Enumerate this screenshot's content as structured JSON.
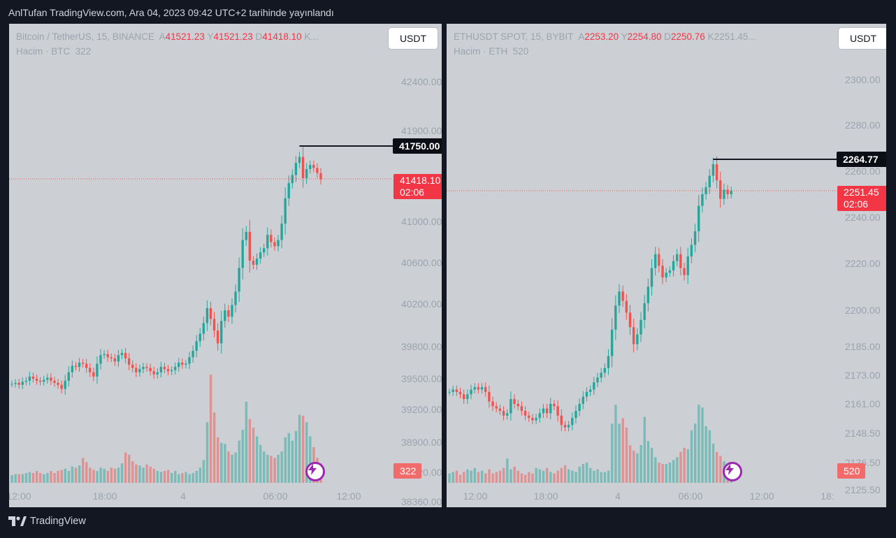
{
  "publication": "AnlTufan TradingView.com, Ara 04, 2023 09:42 UTC+2 tarihinde yayınlandı",
  "brand": "TradingView",
  "icons": {
    "brand": "tradingview-logo-icon",
    "alert": "lightning-bolt-icon"
  },
  "colors": {
    "up": "#26a69a",
    "down": "#ef5350",
    "pane_bg": "#ccd0d5",
    "frame_bg": "#131722"
  },
  "chart_data": [
    {
      "type": "candlestick",
      "symbol": "Bitcoin / TetherUS, 15, BINANCE",
      "ohlc_labels": {
        "a": "A",
        "a_val": "41521.23",
        "y": "Y",
        "y_val": "41521.23",
        "d": "D",
        "d_val": "41418.10",
        "k": "K..."
      },
      "volume_label": "Hacim · BTC",
      "volume_value": "322",
      "currency_button": "USDT",
      "ylim": [
        38360,
        42570
      ],
      "y_ticks": [
        "42400.00",
        "41900.00",
        "41000.00",
        "40600.00",
        "40200.00",
        "39800.00",
        "39500.00",
        "39200.00",
        "38900.00",
        "38620.00",
        "38360.00"
      ],
      "x_ticks": [
        "12:00",
        "18:00",
        "4",
        "06:00",
        "12:00"
      ],
      "high_marker": "41750.00",
      "last_price": "41418.10",
      "countdown": "02:06",
      "closes": [
        39450,
        39460,
        39440,
        39470,
        39480,
        39520,
        39500,
        39480,
        39470,
        39490,
        39510,
        39480,
        39460,
        39440,
        39400,
        39480,
        39560,
        39620,
        39610,
        39650,
        39640,
        39600,
        39560,
        39520,
        39640,
        39720,
        39730,
        39700,
        39690,
        39660,
        39720,
        39740,
        39690,
        39630,
        39600,
        39560,
        39590,
        39610,
        39600,
        39570,
        39540,
        39560,
        39610,
        39590,
        39570,
        39580,
        39610,
        39650,
        39630,
        39640,
        39700,
        39760,
        39850,
        39920,
        40020,
        40160,
        40060,
        39950,
        39830,
        40040,
        40140,
        40080,
        40190,
        40320,
        40550,
        40820,
        40900,
        40620,
        40580,
        40640,
        40700,
        40740,
        40870,
        40800,
        40760,
        40820,
        40980,
        41230,
        41380,
        41460,
        41580,
        41640,
        41430,
        41520,
        41560,
        41530,
        41480,
        41418.1
      ],
      "volumes": [
        14,
        16,
        16,
        16,
        18,
        20,
        18,
        22,
        18,
        16,
        18,
        22,
        18,
        22,
        24,
        26,
        22,
        30,
        28,
        32,
        46,
        38,
        28,
        24,
        22,
        28,
        26,
        22,
        28,
        26,
        28,
        36,
        56,
        52,
        40,
        34,
        32,
        28,
        34,
        30,
        26,
        22,
        20,
        22,
        24,
        18,
        22,
        16,
        18,
        20,
        16,
        18,
        22,
        28,
        42,
        112,
        200,
        130,
        84,
        74,
        72,
        58,
        52,
        56,
        78,
        98,
        150,
        118,
        102,
        86,
        70,
        58,
        52,
        50,
        46,
        52,
        58,
        84,
        92,
        78,
        96,
        126,
        124,
        112,
        86,
        66,
        46,
        36
      ],
      "volume_max": 168
    },
    {
      "type": "candlestick",
      "symbol": "ETHUSDT SPOT, 15, BYBIT",
      "ohlc_labels": {
        "a": "A",
        "a_val": "2253.20",
        "y": "Y",
        "y_val": "2254.80",
        "d": "D",
        "d_val": "2250.76",
        "k": "K2251.45..."
      },
      "volume_label": "Hacim · ETH",
      "volume_value": "520",
      "currency_button": "USDT",
      "ylim": [
        2115,
        2301
      ],
      "y_ticks": [
        "2300.00",
        "2280.00",
        "2260.00",
        "2240.00",
        "2220.00",
        "2200.00",
        "2185.00",
        "2173.00",
        "2161.00",
        "2148.50",
        "2136.50",
        "2125.50"
      ],
      "x_ticks": [
        "12:00",
        "18:00",
        "4",
        "06:00",
        "12:00",
        "18:"
      ],
      "high_marker": "2264.77",
      "last_price": "2251.45",
      "countdown": "02:06",
      "closes": [
        2166,
        2167,
        2166,
        2165,
        2163,
        2165,
        2167,
        2168,
        2167,
        2168,
        2166,
        2162,
        2160,
        2159,
        2158,
        2156,
        2157,
        2163,
        2161,
        2160,
        2158,
        2156,
        2155,
        2154,
        2155,
        2157,
        2159,
        2157,
        2161,
        2160,
        2156,
        2152,
        2151,
        2152,
        2155,
        2158,
        2161,
        2164,
        2166,
        2167,
        2170,
        2172,
        2174,
        2176,
        2181,
        2192,
        2202,
        2208,
        2204,
        2199,
        2193,
        2186,
        2190,
        2196,
        2203,
        2210,
        2218,
        2224,
        2219,
        2214,
        2216,
        2217,
        2221,
        2224,
        2218,
        2215,
        2223,
        2228,
        2234,
        2245,
        2250,
        2253,
        2258,
        2263,
        2256,
        2248,
        2252,
        2250,
        2251.45
      ],
      "volumes": [
        14,
        16,
        18,
        12,
        16,
        20,
        18,
        22,
        16,
        18,
        14,
        20,
        14,
        16,
        18,
        22,
        36,
        20,
        24,
        18,
        14,
        12,
        16,
        14,
        22,
        20,
        18,
        22,
        16,
        14,
        18,
        22,
        26,
        20,
        18,
        16,
        24,
        28,
        30,
        22,
        18,
        20,
        16,
        16,
        18,
        88,
        116,
        88,
        96,
        82,
        56,
        48,
        44,
        56,
        98,
        62,
        52,
        38,
        30,
        28,
        28,
        30,
        34,
        38,
        46,
        52,
        50,
        78,
        88,
        116,
        112,
        84,
        78,
        58,
        46,
        40,
        32,
        24,
        18
      ],
      "volume_max": 135
    }
  ]
}
